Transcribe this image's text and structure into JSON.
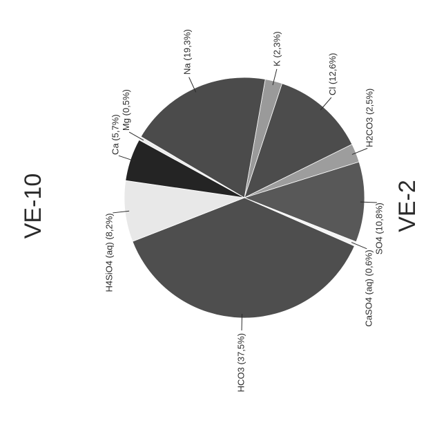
{
  "chart_data": {
    "type": "pie",
    "titles": [
      "VE-10",
      "VE-2"
    ],
    "slices": [
      {
        "label": "K (2,3%)",
        "value": 2.3,
        "color": "#9a9a9a"
      },
      {
        "label": "Cl (12,6%)",
        "value": 12.6,
        "color": "#4c4c4c"
      },
      {
        "label": "H2CO3 (2,5%)",
        "value": 2.5,
        "color": "#9d9d9d"
      },
      {
        "label": "SO4 (10,8%)",
        "value": 10.8,
        "color": "#585858"
      },
      {
        "label": "CaSO4 (aq) (0,6%)",
        "value": 0.6,
        "color": "#f4f4f4"
      },
      {
        "label": "HCO3 (37,5%)",
        "value": 37.5,
        "color": "#4e4e4e"
      },
      {
        "label": "H4SiO4 (aq) (8,2%)",
        "value": 8.2,
        "color": "#e8e8e8"
      },
      {
        "label": "Ca (5,7%)",
        "value": 5.7,
        "color": "#242424"
      },
      {
        "label": "Mg (0,5%)",
        "value": 0.5,
        "color": "#ededed"
      },
      {
        "label": "Na (19,3%)",
        "value": 19.3,
        "color": "#4b4b4b"
      }
    ]
  }
}
